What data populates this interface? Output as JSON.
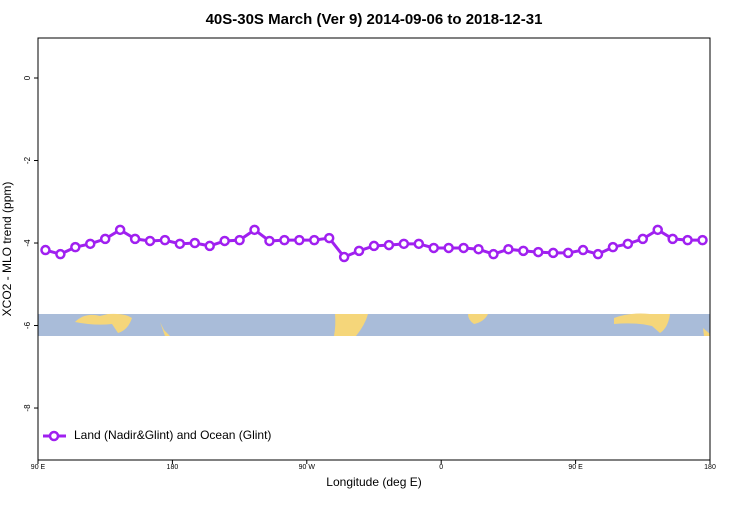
{
  "chart_data": {
    "type": "line",
    "title": "40S-30S March (Ver 9)   2014-09-06 to 2018-12-31",
    "x_label": "Longitude (deg E)",
    "y_label": "XCO2 - MLO trend (ppm)",
    "x": [
      95,
      105,
      115,
      125,
      135,
      145,
      155,
      165,
      175,
      185,
      195,
      205,
      215,
      225,
      235,
      245,
      255,
      265,
      275,
      285,
      295,
      305,
      315,
      325,
      335,
      345,
      355,
      365,
      375,
      385,
      395,
      405,
      415,
      425,
      435,
      445,
      455,
      465,
      475,
      485,
      495,
      505,
      515,
      525,
      535
    ],
    "series": [
      {
        "name": "Land (Nadir&Glint) and Ocean (Glint)",
        "color": "#a020f0",
        "values": [
          -4.17,
          -4.27,
          -4.1,
          -4.02,
          -3.9,
          -3.68,
          -3.9,
          -3.95,
          -3.93,
          -4.02,
          -4.0,
          -4.07,
          -3.95,
          -3.93,
          -3.68,
          -3.95,
          -3.93,
          -3.93,
          -3.93,
          -3.88,
          -4.34,
          -4.19,
          -4.07,
          -4.05,
          -4.02,
          -4.02,
          -4.12,
          -4.12,
          -4.12,
          -4.15,
          -4.27,
          -4.15,
          -4.19,
          -4.22,
          -4.24,
          -4.24,
          -4.17,
          -4.27,
          -4.1,
          -4.02,
          -3.9,
          -3.68,
          -3.9,
          -3.93,
          -3.93
        ]
      }
    ],
    "xlim": [
      90,
      540
    ],
    "xticks": [
      {
        "value": 90,
        "label": "90 E"
      },
      180,
      {
        "value": 270,
        "label": "90 W"
      },
      {
        "value": 360,
        "label": "0"
      },
      {
        "value": 450,
        "label": "90 E"
      },
      {
        "value": 540,
        "label": "180"
      }
    ],
    "ylim": [
      -9.26,
      0.97
    ],
    "yticks": [
      0,
      -2,
      -4,
      -6,
      -8
    ],
    "legend": "bottom-left"
  }
}
